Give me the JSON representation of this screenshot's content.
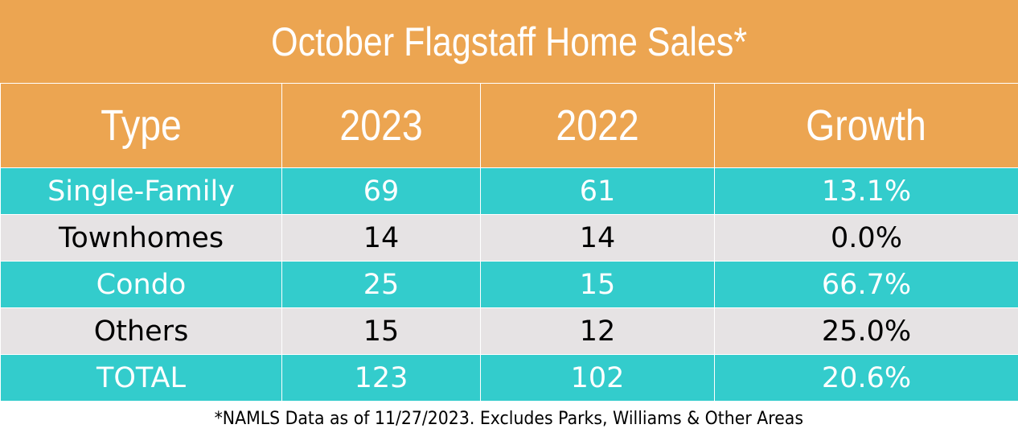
{
  "title": "October Flagstaff Home Sales*",
  "headers": [
    "Type",
    "2023",
    "2022",
    "Growth"
  ],
  "rows": [
    {
      "type": "Single-Family",
      "y2023": "69",
      "y2022": "61",
      "growth": "13.1%",
      "style": "teal"
    },
    {
      "type": "Townhomes",
      "y2023": "14",
      "y2022": "14",
      "growth": "0.0%",
      "style": "gray"
    },
    {
      "type": "Condo",
      "y2023": "25",
      "y2022": "15",
      "growth": "66.7%",
      "style": "teal"
    },
    {
      "type": "Others",
      "y2023": "15",
      "y2022": "12",
      "growth": "25.0%",
      "style": "gray"
    },
    {
      "type": "TOTAL",
      "y2023": "123",
      "y2022": "102",
      "growth": "20.6%",
      "style": "teal"
    }
  ],
  "footnote": "*NAMLS Data as of 11/27/2023. Excludes Parks, Williams & Other Areas",
  "colors": {
    "header": "#ECA551",
    "teal_row": "#33CCCC",
    "gray_row": "#E6E3E4"
  },
  "chart_data": {
    "type": "table",
    "title": "October Flagstaff Home Sales*",
    "columns": [
      "Type",
      "2023",
      "2022",
      "Growth"
    ],
    "rows": [
      [
        "Single-Family",
        69,
        61,
        "13.1%"
      ],
      [
        "Townhomes",
        14,
        14,
        "0.0%"
      ],
      [
        "Condo",
        25,
        15,
        "66.7%"
      ],
      [
        "Others",
        15,
        12,
        "25.0%"
      ],
      [
        "TOTAL",
        123,
        102,
        "20.6%"
      ]
    ],
    "annotations": [
      "*NAMLS Data as of 11/27/2023. Excludes Parks, Williams & Other Areas"
    ]
  }
}
